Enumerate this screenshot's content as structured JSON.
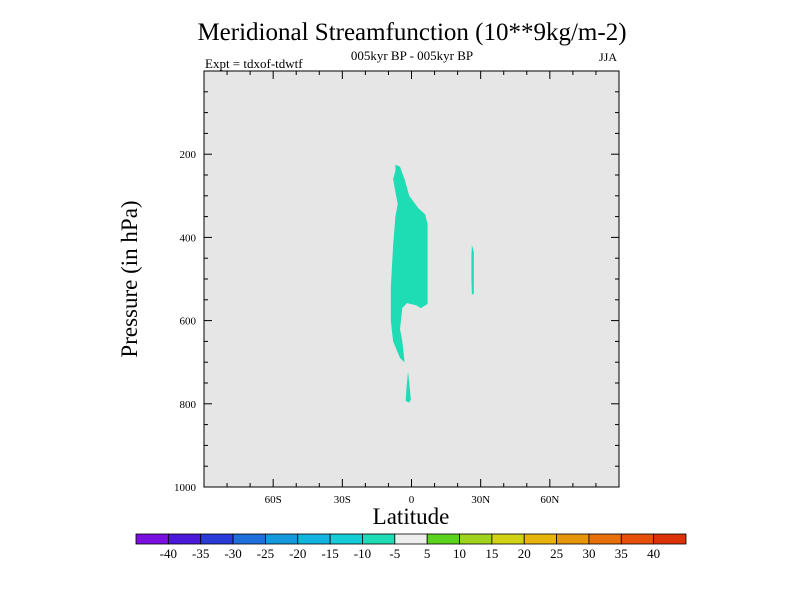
{
  "chart_data": {
    "type": "contour",
    "title": "Meridional Streamfunction (10**9kg/m-2)",
    "subtitle": "005kyr BP - 005kyr BP",
    "left_label": "Expt = tdxof-tdwtf",
    "right_label": "JJA",
    "xlabel": "Latitude",
    "ylabel": "Pressure (in hPa)",
    "xlim": [
      -90,
      90
    ],
    "ylim": [
      1000,
      0
    ],
    "x_ticks": [
      {
        "value": -60,
        "label": "60S"
      },
      {
        "value": -30,
        "label": "30S"
      },
      {
        "value": 0,
        "label": "0"
      },
      {
        "value": 30,
        "label": "30N"
      },
      {
        "value": 60,
        "label": "60N"
      }
    ],
    "y_ticks": [
      {
        "value": 200,
        "label": "200"
      },
      {
        "value": 400,
        "label": "400"
      },
      {
        "value": 600,
        "label": "600"
      },
      {
        "value": 800,
        "label": "800"
      },
      {
        "value": 1000,
        "label": "1000"
      }
    ],
    "background_color": "#e6e6e6",
    "filled_regions": [
      {
        "level": "-10 to -5",
        "color": "#1edcb4",
        "polygon": [
          [
            -7,
            225
          ],
          [
            -5,
            230
          ],
          [
            -3,
            260
          ],
          [
            -1,
            300
          ],
          [
            3,
            330
          ],
          [
            6,
            345
          ],
          [
            7,
            370
          ],
          [
            7,
            560
          ],
          [
            4,
            570
          ],
          [
            2,
            563
          ],
          [
            -2,
            558
          ],
          [
            -4,
            570
          ],
          [
            -5,
            620
          ],
          [
            -4,
            650
          ],
          [
            -3,
            700
          ],
          [
            -5,
            690
          ],
          [
            -8,
            650
          ],
          [
            -9,
            600
          ],
          [
            -9,
            520
          ],
          [
            -8,
            420
          ],
          [
            -7,
            350
          ],
          [
            -6,
            320
          ],
          [
            -8,
            260
          ],
          [
            -7,
            240
          ]
        ]
      },
      {
        "level": "-10 to -5",
        "color": "#1edcb4",
        "polygon": [
          [
            -1.5,
            722
          ],
          [
            -0.8,
            760
          ],
          [
            -0.3,
            790
          ],
          [
            -1,
            797
          ],
          [
            -2.5,
            793
          ],
          [
            -2.2,
            765
          ]
        ]
      },
      {
        "level": "-10 to -5",
        "color": "#1edcb4",
        "polygon": [
          [
            26.2,
            418
          ],
          [
            27,
            435
          ],
          [
            27,
            535
          ],
          [
            26.2,
            538
          ],
          [
            26,
            500
          ],
          [
            26,
            445
          ]
        ]
      }
    ],
    "colorbar": {
      "levels": [
        "-40",
        "-35",
        "-30",
        "-25",
        "-20",
        "-15",
        "-10",
        "-5",
        "5",
        "10",
        "15",
        "20",
        "25",
        "30",
        "35",
        "40"
      ],
      "colors": [
        "#7a10e0",
        "#4b1ad8",
        "#2a3bd8",
        "#1e6fdc",
        "#1499dc",
        "#14b4e0",
        "#14cdd6",
        "#1edcb4",
        "#eeeeee",
        "#5ad21e",
        "#a0d21e",
        "#d2d214",
        "#e6b40a",
        "#e6960a",
        "#e6700a",
        "#e6500a",
        "#dc320a"
      ]
    }
  }
}
